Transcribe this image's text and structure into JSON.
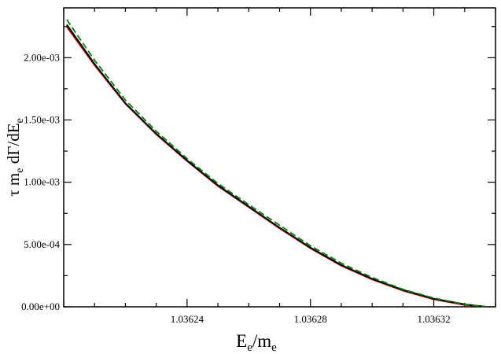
{
  "chart_data": {
    "type": "line",
    "xlabel": {
      "main": "E",
      "sub1": "e",
      "sep": "/m",
      "sub2": "e"
    },
    "ylabel": {
      "p1": "τ  m",
      "s1": "e",
      "p2": " dΓ/dE",
      "s2": "e"
    },
    "xlim": [
      1.0362,
      1.03634
    ],
    "ylim": [
      0,
      0.0024
    ],
    "x_major_ticks": [
      1.03624,
      1.03628,
      1.03632
    ],
    "x_tick_labels": [
      "1.03624",
      "1.03628",
      "1.03632"
    ],
    "x_minor_step": 1e-05,
    "y_major_ticks": [
      0,
      0.0005,
      0.001,
      0.0015,
      0.002
    ],
    "y_tick_labels": [
      "0.00e+00",
      "5.00e-04",
      "1.00e-03",
      "1.50e-03",
      "2.00e-03"
    ],
    "y_minor_step": 0.00025,
    "grid": false,
    "series": [
      {
        "color": "#cc0000",
        "dash": "solid",
        "x": [
          1.036201,
          1.03621,
          1.03622,
          1.03623,
          1.03624,
          1.03625,
          1.03626,
          1.03627,
          1.03628,
          1.03629,
          1.0363,
          1.03631,
          1.03632,
          1.03633,
          1.036337
        ],
        "y": [
          0.002248,
          0.00194,
          0.00163,
          0.001385,
          0.00117,
          0.00097,
          0.0008,
          0.00063,
          0.00047,
          0.00033,
          0.00022,
          0.00013,
          6e-05,
          1.5e-05,
          0.0
        ]
      },
      {
        "color": "#000000",
        "dash": "solid",
        "x": [
          1.036201,
          1.03621,
          1.03622,
          1.03623,
          1.03624,
          1.03625,
          1.03626,
          1.03627,
          1.03628,
          1.03629,
          1.0363,
          1.03631,
          1.03632,
          1.03633,
          1.036337
        ],
        "y": [
          0.002265,
          0.00195,
          0.001635,
          0.00139,
          0.001175,
          0.000975,
          0.000805,
          0.000635,
          0.000475,
          0.000335,
          0.000225,
          0.000135,
          6.5e-05,
          2e-05,
          0.0
        ]
      },
      {
        "color": "#008000",
        "dash": "dashed",
        "x": [
          1.036201,
          1.03621,
          1.03622,
          1.03623,
          1.03624,
          1.03625,
          1.03626,
          1.03627,
          1.03628,
          1.03629,
          1.0363,
          1.03631,
          1.03632,
          1.03633,
          1.036337
        ],
        "y": [
          0.002305,
          0.00198,
          0.00166,
          0.00141,
          0.00119,
          0.00099,
          0.00082,
          0.000655,
          0.00049,
          0.00035,
          0.000235,
          0.00014,
          7e-05,
          2e-05,
          0.0
        ]
      }
    ]
  }
}
